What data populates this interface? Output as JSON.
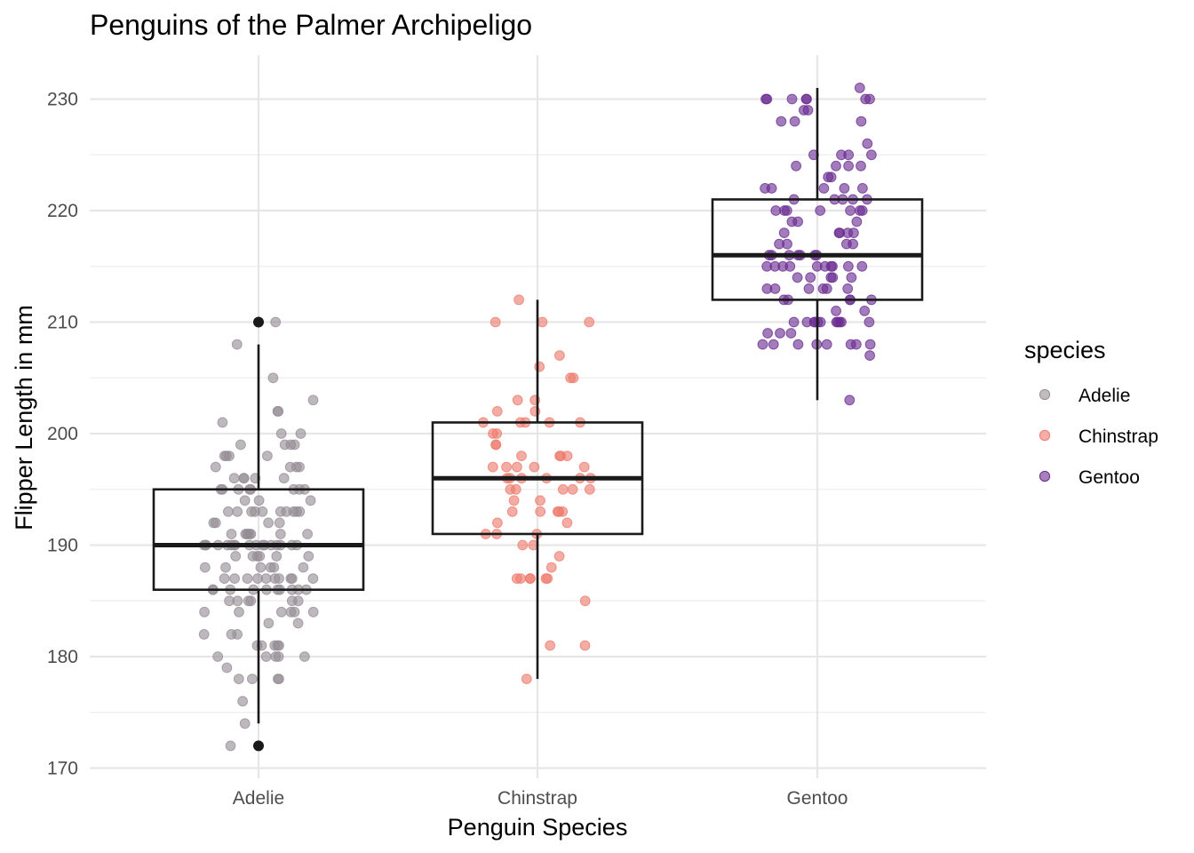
{
  "chart_data": {
    "type": "boxplot",
    "title": "Penguins of the Palmer Archipeligo",
    "xlabel": "Penguin Species",
    "ylabel": "Flipper Length in mm",
    "categories": [
      "Adelie",
      "Chinstrap",
      "Gentoo"
    ],
    "ylim": [
      169,
      234
    ],
    "yticks": [
      170,
      180,
      190,
      200,
      210,
      220,
      230
    ],
    "grid": true,
    "legend": {
      "title": "species",
      "placement": "right",
      "entries": [
        {
          "label": "Adelie",
          "color": "#958d94"
        },
        {
          "label": "Chinstrap",
          "color": "#ee7a6c"
        },
        {
          "label": "Gentoo",
          "color": "#6a2c91"
        }
      ]
    },
    "boxes": [
      {
        "category": "Adelie",
        "min": 174,
        "q1": 186,
        "median": 190,
        "q3": 195,
        "max": 208,
        "outliers": [
          210,
          172
        ]
      },
      {
        "category": "Chinstrap",
        "min": 178,
        "q1": 191,
        "median": 196,
        "q3": 201,
        "max": 212,
        "outliers": []
      },
      {
        "category": "Gentoo",
        "min": 203,
        "q1": 212,
        "median": 216,
        "q3": 221,
        "max": 231,
        "outliers": []
      }
    ],
    "points": [
      {
        "category": "Adelie",
        "color": "#958d94",
        "values": [
          210,
          208,
          205,
          203,
          202,
          202,
          201,
          200,
          200,
          199,
          199,
          199,
          199,
          198,
          198,
          198,
          198,
          197,
          197,
          197,
          197,
          196,
          196,
          196,
          196,
          196,
          195,
          195,
          195,
          195,
          195,
          195,
          195,
          195,
          194,
          194,
          194,
          193,
          193,
          193,
          193,
          193,
          193,
          193,
          193,
          193,
          193,
          192,
          192,
          192,
          192,
          191,
          191,
          191,
          191,
          191,
          191,
          191,
          191,
          190,
          190,
          190,
          190,
          190,
          190,
          190,
          190,
          190,
          190,
          190,
          190,
          190,
          190,
          190,
          190,
          190,
          189,
          189,
          189,
          189,
          189,
          189,
          188,
          188,
          188,
          188,
          188,
          188,
          187,
          187,
          187,
          187,
          187,
          187,
          187,
          187,
          187,
          187,
          186,
          186,
          186,
          186,
          186,
          186,
          186,
          186,
          186,
          186,
          185,
          185,
          185,
          185,
          185,
          185,
          184,
          184,
          184,
          184,
          184,
          184,
          183,
          183,
          182,
          182,
          182,
          181,
          181,
          181,
          181,
          181,
          180,
          180,
          180,
          180,
          180,
          179,
          178,
          178,
          178,
          178,
          176,
          174,
          172
        ]
      },
      {
        "category": "Chinstrap",
        "color": "#ee7a6c",
        "values": [
          212,
          210,
          210,
          210,
          207,
          206,
          205,
          205,
          203,
          203,
          202,
          202,
          201,
          201,
          201,
          201,
          201,
          200,
          200,
          199,
          199,
          198,
          198,
          198,
          198,
          197,
          197,
          197,
          197,
          197,
          196,
          196,
          196,
          196,
          196,
          196,
          195,
          195,
          195,
          195,
          195,
          194,
          194,
          193,
          193,
          193,
          193,
          193,
          192,
          192,
          191,
          191,
          191,
          190,
          190,
          189,
          188,
          187,
          187,
          187,
          187,
          187,
          187,
          185,
          181,
          181,
          178
        ]
      },
      {
        "category": "Gentoo",
        "color": "#6a2c91",
        "values": [
          231,
          230,
          230,
          230,
          230,
          230,
          230,
          230,
          229,
          229,
          228,
          228,
          228,
          226,
          225,
          225,
          225,
          225,
          224,
          224,
          224,
          224,
          223,
          223,
          222,
          222,
          222,
          222,
          222,
          221,
          221,
          221,
          221,
          221,
          220,
          220,
          220,
          220,
          220,
          220,
          220,
          219,
          219,
          219,
          218,
          218,
          218,
          218,
          218,
          217,
          217,
          217,
          217,
          216,
          216,
          216,
          216,
          216,
          216,
          216,
          215,
          215,
          215,
          215,
          215,
          215,
          215,
          215,
          215,
          215,
          214,
          214,
          214,
          214,
          214,
          213,
          213,
          213,
          213,
          213,
          213,
          212,
          212,
          212,
          212,
          212,
          211,
          211,
          210,
          210,
          210,
          210,
          210,
          210,
          210,
          210,
          210,
          210,
          210,
          209,
          209,
          209,
          208,
          208,
          208,
          208,
          208,
          208,
          208,
          208,
          207,
          203
        ]
      }
    ]
  }
}
